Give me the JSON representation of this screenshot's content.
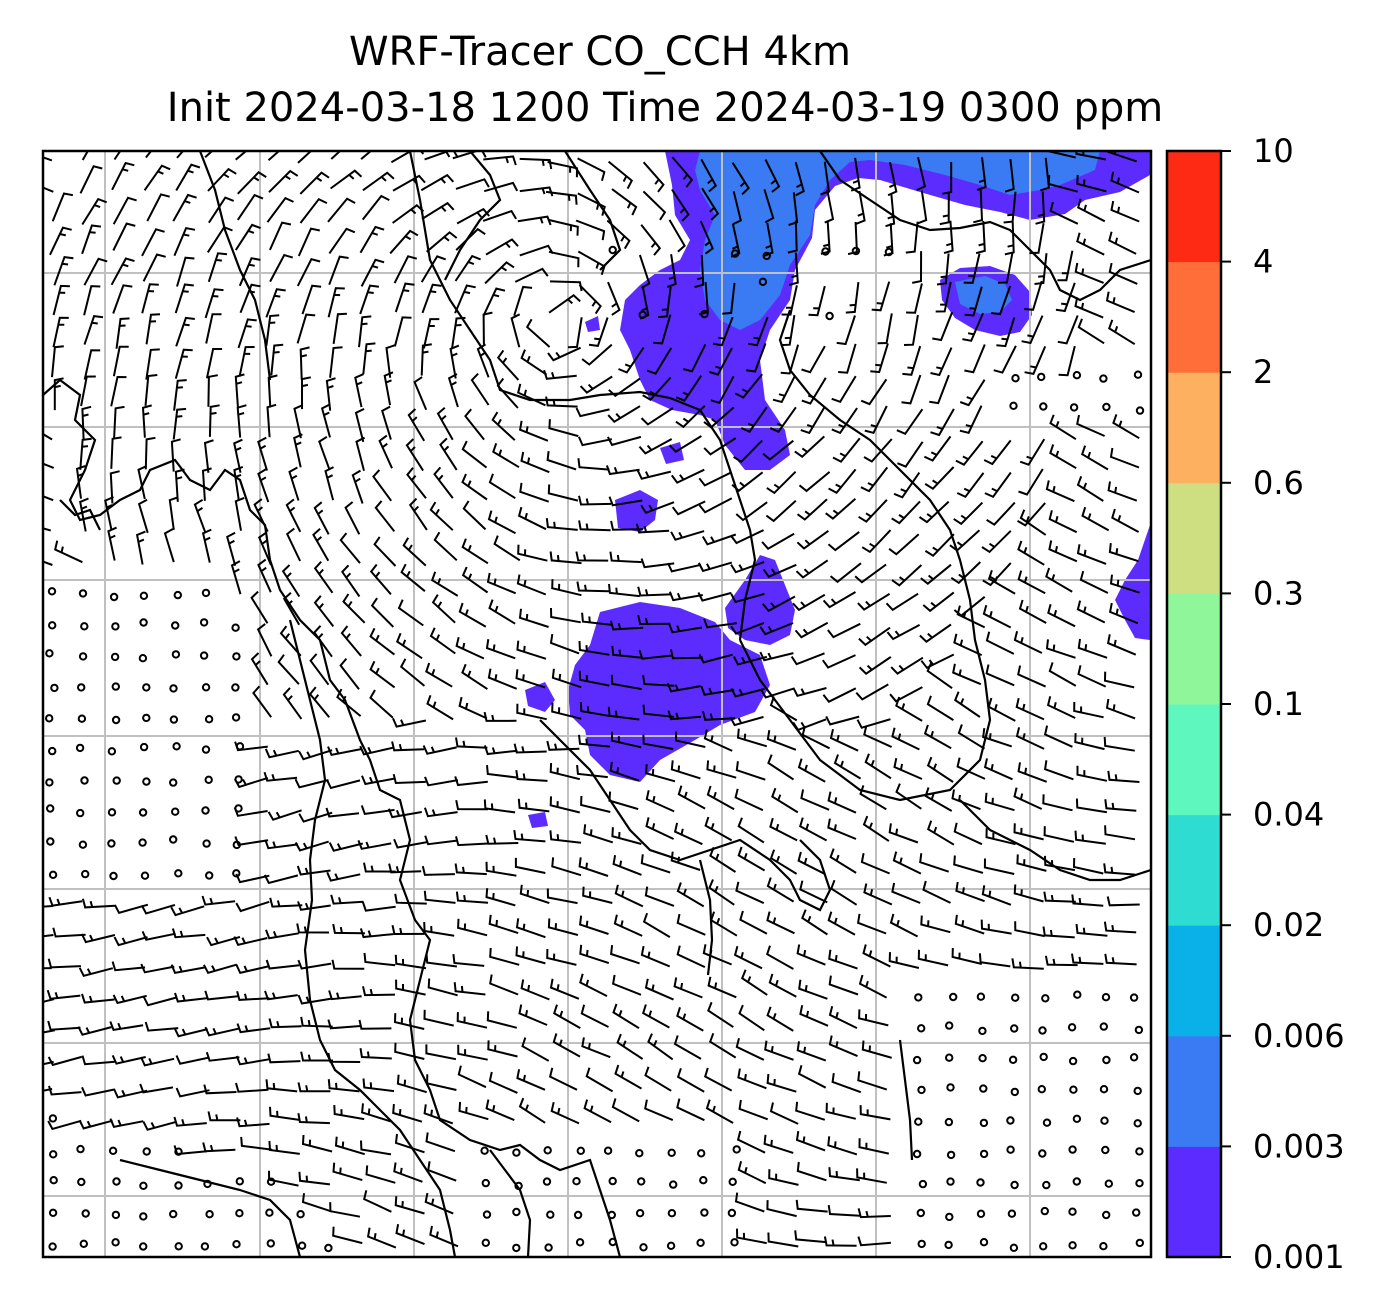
{
  "title": {
    "line1": "WRF-Tracer CO_CCH 4km",
    "line2": "Init 2024-03-18 1200 Time 2024-03-19 0300 ppm"
  },
  "colorbar": {
    "levels": [
      "0.001",
      "0.003",
      "0.006",
      "0.02",
      "0.04",
      "0.1",
      "0.3",
      "0.6",
      "2",
      "4",
      "10"
    ],
    "colors": [
      "#5c2cff",
      "#3a7af2",
      "#0ab0e8",
      "#2fdcd2",
      "#5ef7bd",
      "#8ff79a",
      "#cddf80",
      "#fdb05f",
      "#ff6d38",
      "#ff2a14"
    ]
  },
  "map": {
    "grid_rows": 7,
    "grid_cols": 7,
    "tracer_color": "#5c2cff",
    "tracer_color_mid": "#3a7af2",
    "barb_color": "#000000",
    "grid_color": "#c0c0c0"
  }
}
